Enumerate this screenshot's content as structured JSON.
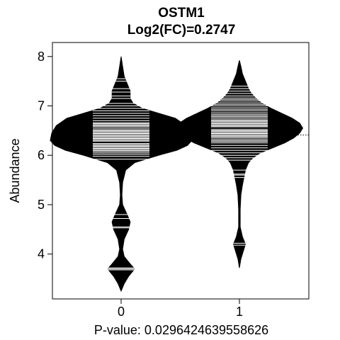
{
  "chart_data": {
    "type": "beanplot",
    "title": "OSTM1",
    "subtitle": "Log2(FC)=0.2747",
    "ylabel": "Abundance",
    "xlabel": "P-value: 0.0296424639558626",
    "categories": [
      "0",
      "1"
    ],
    "ylim": [
      3.1,
      8.1
    ],
    "yticks": [
      4,
      5,
      6,
      7,
      8
    ],
    "overall_mean": 6.41,
    "grid": false,
    "legend": "none",
    "series": [
      {
        "category": "0",
        "mean": 6.26,
        "range": [
          3.25,
          8.0
        ],
        "density": [
          [
            3.25,
            0.0
          ],
          [
            3.4,
            0.02
          ],
          [
            3.55,
            0.05
          ],
          [
            3.7,
            0.09
          ],
          [
            3.8,
            0.06
          ],
          [
            3.95,
            0.02
          ],
          [
            4.1,
            0.01
          ],
          [
            4.3,
            0.02
          ],
          [
            4.5,
            0.05
          ],
          [
            4.65,
            0.06
          ],
          [
            4.8,
            0.04
          ],
          [
            5.0,
            0.01
          ],
          [
            5.2,
            0.005
          ],
          [
            5.45,
            0.01
          ],
          [
            5.7,
            0.03
          ],
          [
            5.85,
            0.09
          ],
          [
            6.0,
            0.25
          ],
          [
            6.1,
            0.37
          ],
          [
            6.2,
            0.44
          ],
          [
            6.3,
            0.47
          ],
          [
            6.45,
            0.46
          ],
          [
            6.6,
            0.43
          ],
          [
            6.75,
            0.36
          ],
          [
            6.85,
            0.25
          ],
          [
            6.95,
            0.14
          ],
          [
            7.05,
            0.08
          ],
          [
            7.15,
            0.06
          ],
          [
            7.3,
            0.06
          ],
          [
            7.45,
            0.04
          ],
          [
            7.6,
            0.02
          ],
          [
            7.8,
            0.01
          ],
          [
            8.0,
            0.0
          ]
        ],
        "observations": [
          3.68,
          3.7,
          3.72,
          4.53,
          4.55,
          4.72,
          4.8,
          5.92,
          5.98,
          6.02,
          6.05,
          6.08,
          6.1,
          6.12,
          6.14,
          6.16,
          6.18,
          6.2,
          6.22,
          6.24,
          6.26,
          6.28,
          6.3,
          6.32,
          6.34,
          6.36,
          6.38,
          6.4,
          6.42,
          6.44,
          6.46,
          6.48,
          6.5,
          6.52,
          6.55,
          6.58,
          6.6,
          6.62,
          6.64,
          6.66,
          6.7,
          6.75,
          6.8,
          6.85,
          6.9,
          6.95,
          7.0,
          7.05,
          7.15,
          7.2,
          7.28,
          7.35,
          7.5,
          7.55
        ]
      },
      {
        "category": "1",
        "mean": 6.55,
        "range": [
          3.72,
          7.92
        ],
        "density": [
          [
            3.72,
            0.0
          ],
          [
            3.9,
            0.01
          ],
          [
            4.05,
            0.025
          ],
          [
            4.2,
            0.04
          ],
          [
            4.35,
            0.02
          ],
          [
            4.55,
            0.005
          ],
          [
            4.9,
            0.005
          ],
          [
            5.2,
            0.01
          ],
          [
            5.4,
            0.02
          ],
          [
            5.55,
            0.03
          ],
          [
            5.7,
            0.04
          ],
          [
            5.85,
            0.06
          ],
          [
            5.95,
            0.09
          ],
          [
            6.05,
            0.14
          ],
          [
            6.15,
            0.22
          ],
          [
            6.25,
            0.3
          ],
          [
            6.35,
            0.36
          ],
          [
            6.45,
            0.4
          ],
          [
            6.55,
            0.42
          ],
          [
            6.65,
            0.4
          ],
          [
            6.75,
            0.35
          ],
          [
            6.85,
            0.28
          ],
          [
            6.95,
            0.21
          ],
          [
            7.05,
            0.15
          ],
          [
            7.15,
            0.11
          ],
          [
            7.25,
            0.08
          ],
          [
            7.35,
            0.06
          ],
          [
            7.5,
            0.04
          ],
          [
            7.65,
            0.02
          ],
          [
            7.8,
            0.01
          ],
          [
            7.92,
            0.0
          ]
        ],
        "observations": [
          4.18,
          4.22,
          5.55,
          5.6,
          5.62,
          5.7,
          5.9,
          5.95,
          6.0,
          6.05,
          6.1,
          6.15,
          6.2,
          6.25,
          6.28,
          6.3,
          6.33,
          6.36,
          6.38,
          6.4,
          6.42,
          6.44,
          6.46,
          6.48,
          6.5,
          6.52,
          6.54,
          6.56,
          6.58,
          6.6,
          6.62,
          6.64,
          6.66,
          6.68,
          6.7,
          6.72,
          6.75,
          6.78,
          6.8,
          6.83,
          6.86,
          6.9,
          6.93,
          6.96,
          7.0,
          7.03,
          7.06,
          7.1,
          7.13,
          7.16,
          7.2,
          7.25,
          7.3,
          7.35,
          7.4
        ]
      }
    ]
  }
}
